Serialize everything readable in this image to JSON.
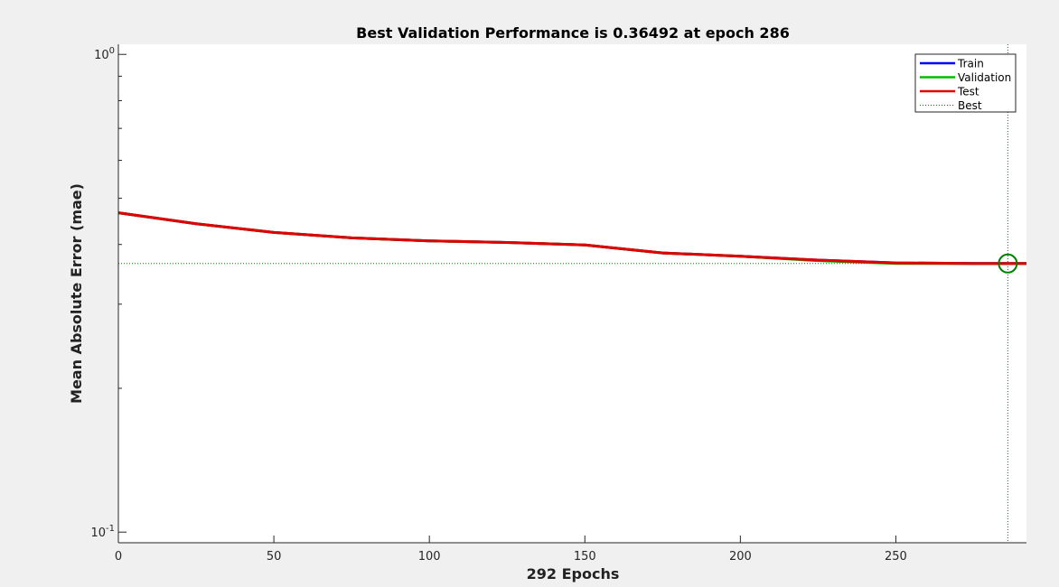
{
  "chart_data": {
    "type": "line",
    "title": "Best Validation Performance is 0.36492 at epoch 286",
    "xlabel": "292 Epochs",
    "ylabel": "Mean Absolute Error  (mae)",
    "yscale": "log",
    "xlim": [
      0,
      292
    ],
    "ylim": [
      0.095,
      1.05
    ],
    "x_ticks": [
      0,
      50,
      100,
      150,
      200,
      250
    ],
    "y_ticks": [
      {
        "value": 1,
        "base": "10",
        "exp": "0"
      },
      {
        "value": 0.1,
        "base": "10",
        "exp": "-1"
      }
    ],
    "grid": false,
    "legend_position": "top-right",
    "series": [
      {
        "name": "Train",
        "color": "#0000ff",
        "x": [
          0,
          25,
          50,
          75,
          100,
          125,
          150,
          175,
          200,
          225,
          250,
          275,
          292
        ],
        "y": [
          0.466,
          0.442,
          0.424,
          0.413,
          0.407,
          0.404,
          0.399,
          0.384,
          0.378,
          0.371,
          0.366,
          0.365,
          0.365
        ]
      },
      {
        "name": "Validation",
        "color": "#00bb00",
        "x": [
          0,
          25,
          50,
          75,
          100,
          125,
          150,
          175,
          200,
          225,
          250,
          275,
          292
        ],
        "y": [
          0.466,
          0.442,
          0.424,
          0.413,
          0.407,
          0.404,
          0.399,
          0.384,
          0.378,
          0.37,
          0.365,
          0.3649,
          0.3649
        ]
      },
      {
        "name": "Test",
        "color": "#e00000",
        "x": [
          0,
          25,
          50,
          75,
          100,
          125,
          150,
          175,
          200,
          225,
          250,
          275,
          292
        ],
        "y": [
          0.466,
          0.442,
          0.424,
          0.413,
          0.407,
          0.404,
          0.399,
          0.384,
          0.378,
          0.371,
          0.366,
          0.365,
          0.365
        ]
      },
      {
        "name": "Best",
        "color": "#008000",
        "style": "dotted",
        "best_epoch": 286,
        "best_value": 0.36492
      }
    ]
  }
}
